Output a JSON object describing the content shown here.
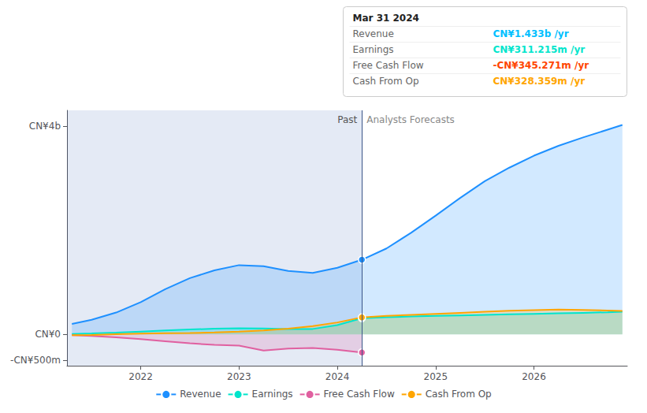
{
  "chart_data": {
    "type": "area",
    "xlim": [
      2021.25,
      2026.95
    ],
    "xticks": [
      2022,
      2023,
      2024,
      2025,
      2026
    ],
    "ylim": [
      -600,
      4300
    ],
    "yticks": [
      {
        "value": -500,
        "label": "-CN¥500m"
      },
      {
        "value": 0,
        "label": "CN¥0"
      },
      {
        "value": 4000,
        "label": "CN¥4b"
      }
    ],
    "grid": false,
    "legend": "bottom",
    "divider_x": 2024.25,
    "annotations": [
      {
        "text": "Past"
      },
      {
        "text": "Analysts Forecasts"
      }
    ],
    "info_box": {
      "title": "Mar 31 2024",
      "rows": [
        {
          "label": "Revenue",
          "value": "CN¥1.433b /yr",
          "color": "#00bfff"
        },
        {
          "label": "Earnings",
          "value": "CN¥311.215m /yr",
          "color": "#00e5cc"
        },
        {
          "label": "Free Cash Flow",
          "value": "-CN¥345.271m /yr",
          "color": "#ff4500"
        },
        {
          "label": "Cash From Op",
          "value": "CN¥328.359m /yr",
          "color": "#ffa500"
        }
      ]
    },
    "series": [
      {
        "name": "Revenue",
        "color": "#1e90ff",
        "x": [
          2021.3,
          2021.5,
          2021.75,
          2022.0,
          2022.25,
          2022.5,
          2022.75,
          2023.0,
          2023.25,
          2023.5,
          2023.75,
          2024.0,
          2024.25,
          2024.5,
          2024.75,
          2025.0,
          2025.25,
          2025.5,
          2025.75,
          2026.0,
          2026.25,
          2026.5,
          2026.75,
          2026.9
        ],
        "values": [
          200,
          280,
          420,
          620,
          870,
          1080,
          1230,
          1330,
          1310,
          1220,
          1180,
          1280,
          1433,
          1650,
          1950,
          2280,
          2620,
          2940,
          3200,
          3430,
          3620,
          3780,
          3930,
          4020
        ]
      },
      {
        "name": "Earnings",
        "color": "#00e5cc",
        "x": [
          2021.3,
          2021.5,
          2021.75,
          2022.0,
          2022.25,
          2022.5,
          2022.75,
          2023.0,
          2023.25,
          2023.5,
          2023.75,
          2024.0,
          2024.25,
          2024.5,
          2024.75,
          2025.0,
          2025.25,
          2025.5,
          2025.75,
          2026.0,
          2026.25,
          2026.5,
          2026.75,
          2026.9
        ],
        "values": [
          10,
          20,
          35,
          55,
          75,
          95,
          110,
          120,
          115,
          105,
          105,
          180,
          311,
          330,
          345,
          355,
          365,
          375,
          385,
          395,
          405,
          415,
          425,
          435
        ]
      },
      {
        "name": "Free Cash Flow",
        "color": "#e060a0",
        "x": [
          2021.3,
          2021.5,
          2021.75,
          2022.0,
          2022.25,
          2022.5,
          2022.75,
          2023.0,
          2023.25,
          2023.5,
          2023.75,
          2024.0,
          2024.25
        ],
        "values": [
          -15,
          -30,
          -55,
          -90,
          -130,
          -170,
          -200,
          -215,
          -310,
          -270,
          -260,
          -295,
          -345
        ]
      },
      {
        "name": "Cash From Op",
        "color": "#ffa500",
        "x": [
          2021.3,
          2021.5,
          2021.75,
          2022.0,
          2022.25,
          2022.5,
          2022.75,
          2023.0,
          2023.25,
          2023.5,
          2023.75,
          2024.0,
          2024.25,
          2024.5,
          2024.75,
          2025.0,
          2025.25,
          2025.5,
          2025.75,
          2026.0,
          2026.25,
          2026.5,
          2026.75,
          2026.9
        ],
        "values": [
          -15,
          -10,
          5,
          15,
          22,
          28,
          38,
          55,
          75,
          110,
          160,
          230,
          328,
          355,
          375,
          395,
          415,
          435,
          455,
          468,
          478,
          470,
          458,
          450
        ]
      }
    ]
  }
}
